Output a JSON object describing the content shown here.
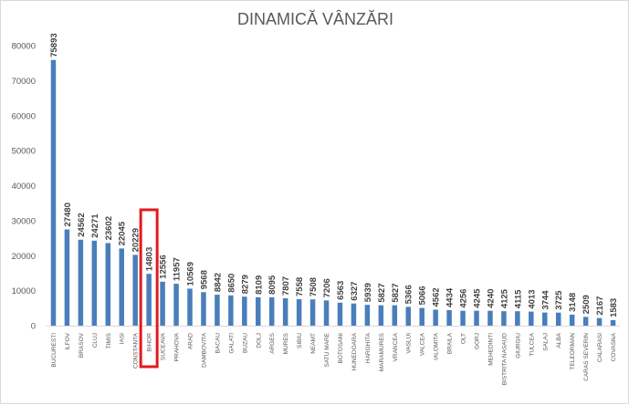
{
  "chart_data": {
    "type": "bar",
    "title": "DINAMICĂ VÂNZĂRI",
    "xlabel": "",
    "ylabel": "",
    "ylim": [
      0,
      80000
    ],
    "yticks": [
      0,
      10000,
      20000,
      30000,
      40000,
      50000,
      60000,
      70000,
      80000
    ],
    "grid": false,
    "legend": "none",
    "bar_color": "#4a7ebb",
    "highlight_color": "#e31a1c",
    "highlighted_category": "BIHOR",
    "categories": [
      "BUCURESTI",
      "ILFOV",
      "BRASOV",
      "CLUJ",
      "TIMIS",
      "IASI",
      "CONSTANTA",
      "BIHOR",
      "SUCEAVA",
      "PRAHOVA",
      "ARAD",
      "DAMBOVITA",
      "BACAU",
      "GALATI",
      "BUZAU",
      "DOLJ",
      "ARGES",
      "MURES",
      "SIBIU",
      "NEAMT",
      "SATU MARE",
      "BOTOSANI",
      "HUNEDOARA",
      "HARGHITA",
      "MARAMURES",
      "VRANCEA",
      "VASLUI",
      "VALCEA",
      "IALOMITA",
      "BRAILA",
      "OLT",
      "GORJ",
      "MEHEDINTI",
      "BISTRITA NASAUD",
      "GIURGIU",
      "TULCEA",
      "SALAJ",
      "ALBA",
      "TELEORMAN",
      "CARAS SEVERIN",
      "CALARASI",
      "COVASNA"
    ],
    "values": [
      75893,
      27480,
      24562,
      24271,
      23602,
      22045,
      20229,
      14803,
      12556,
      11957,
      10569,
      9568,
      8842,
      8650,
      8279,
      8109,
      8095,
      7807,
      7558,
      7508,
      7206,
      6563,
      6327,
      5939,
      5827,
      5827,
      5366,
      5066,
      4562,
      4434,
      4256,
      4245,
      4240,
      4125,
      4115,
      4013,
      3744,
      3725,
      3148,
      2509,
      2167,
      1583
    ]
  }
}
